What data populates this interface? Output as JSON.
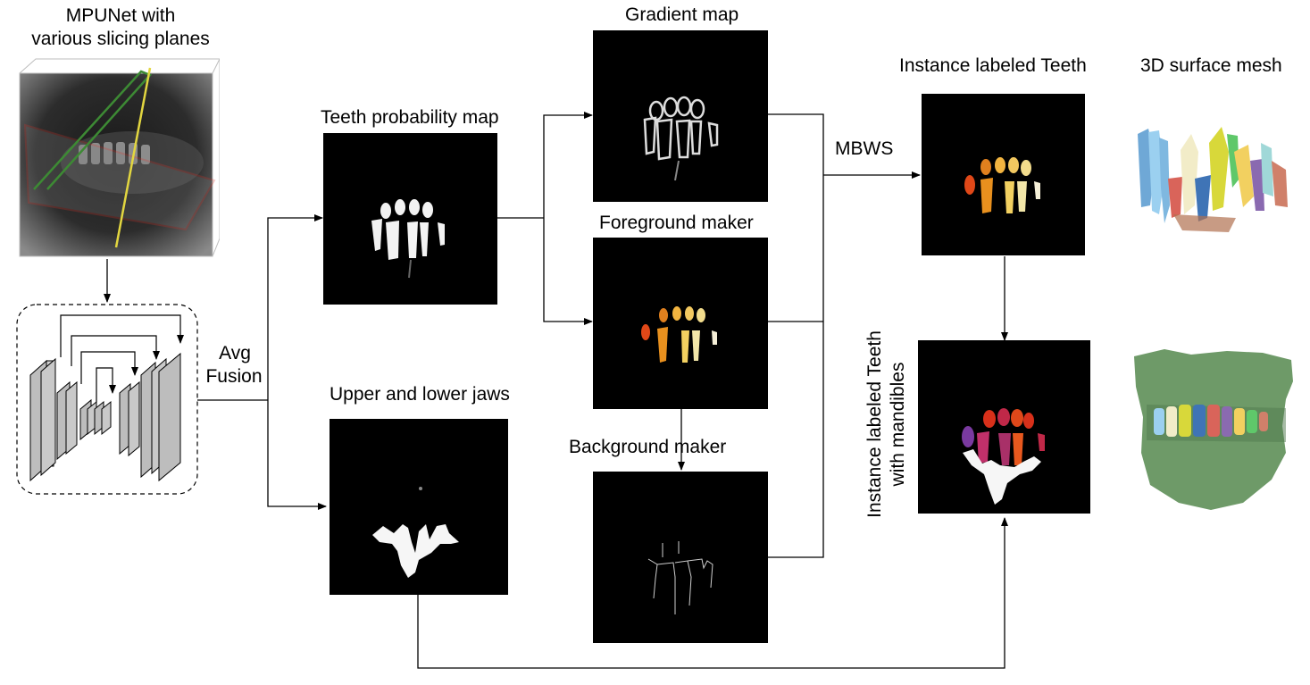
{
  "labels": {
    "mpunet_line1": "MPUNet with",
    "mpunet_line2": "various slicing planes",
    "avg": "Avg",
    "fusion": "Fusion",
    "teeth_prob": "Teeth probability map",
    "jaws": "Upper and lower jaws",
    "gradient": "Gradient map",
    "foreground": "Foreground maker",
    "background": "Background maker",
    "mbws": "MBWS",
    "instance_teeth": "Instance labeled Teeth",
    "surface_mesh": "3D surface mesh",
    "instance_mand_line1": "Instance labeled Teeth",
    "instance_mand_line2": "with mandibles"
  },
  "colors": {
    "arrow": "#000000",
    "panel_bg": "#000000",
    "tooth_orange": "#e8901e",
    "tooth_red": "#d8301a",
    "tooth_cream": "#f2e6a8",
    "tooth_magenta": "#c0306a",
    "tooth_purple": "#7a3aa0",
    "gum_green": "#6e9a68"
  }
}
